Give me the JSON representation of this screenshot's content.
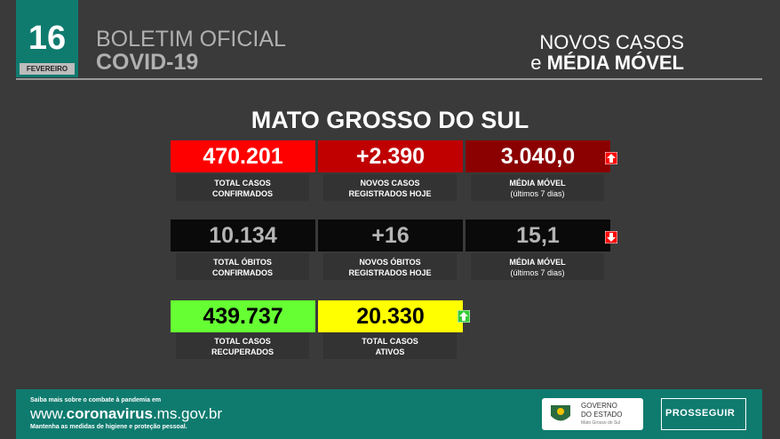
{
  "header": {
    "day": "16",
    "month": "FEVEREIRO",
    "title": "BOLETIM OFICIAL",
    "subtitle": "COVID-19",
    "right_line1": "NOVOS CASOS",
    "right_prefix": "e",
    "right_line2": "MÉDIA MÓVEL"
  },
  "region": "MATO GROSSO DO SUL",
  "cards": [
    {
      "value": "470.201",
      "label": [
        "TOTAL CASOS",
        "CONFIRMADOS"
      ]
    },
    {
      "value": "+2.390",
      "label": [
        "NOVOS CASOS",
        "REGISTRADOS HOJE"
      ]
    },
    {
      "value": "3.040,0",
      "label": [
        "MÉDIA MÓVEL",
        "(últimos 7 dias)"
      ]
    },
    {
      "value": "10.134",
      "label": [
        "TOTAL ÓBITOS",
        "CONFIRMADOS"
      ]
    },
    {
      "value": "+16",
      "label": [
        "NOVOS ÓBITOS",
        "REGISTRADOS HOJE"
      ]
    },
    {
      "value": "15,1",
      "label": [
        "MÉDIA MÓVEL",
        "(últimos 7 dias)"
      ]
    },
    {
      "value": "439.737",
      "label": [
        "TOTAL CASOS",
        "RECUPERADOS"
      ]
    },
    {
      "value": "20.330",
      "label": [
        "TOTAL CASOS",
        "ATIVOS"
      ]
    }
  ],
  "footer": {
    "note": "Saiba mais sobre o combate à pandemia em",
    "url": [
      "www.",
      "coronavirus",
      ".ms.gov.br"
    ],
    "advice": "Mantenha as medidas de higiene e proteção pessoal.",
    "gov": [
      "GOVERNO",
      "DO ESTADO",
      "Mato Grosso do Sul"
    ],
    "brand": "PROSSEGUIR"
  }
}
